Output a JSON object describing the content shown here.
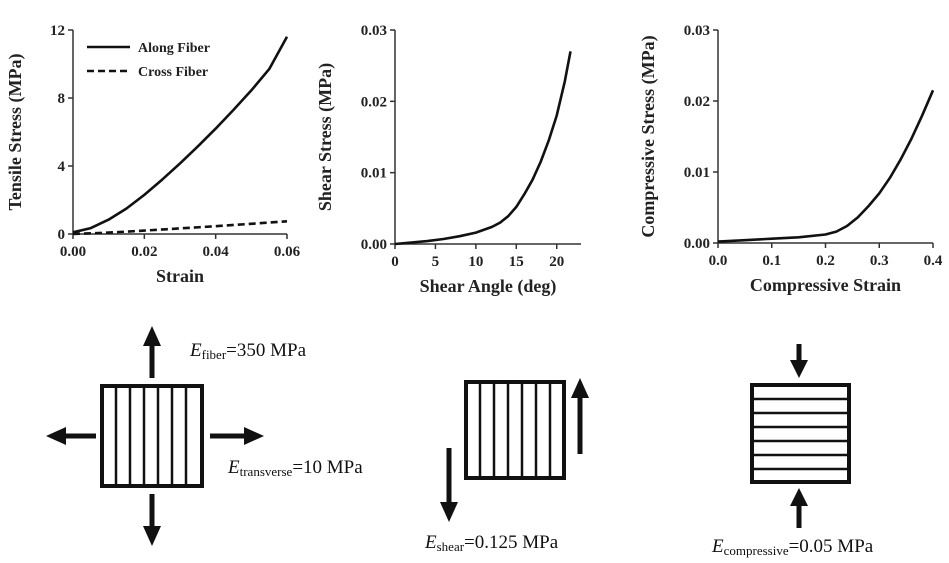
{
  "chart_data": [
    {
      "type": "line",
      "xlabel": "Strain",
      "ylabel": "Tensile Stress (MPa)",
      "xlim": [
        0,
        0.06
      ],
      "ylim": [
        0,
        12
      ],
      "xticks": [
        "0.00",
        "0.02",
        "0.04",
        "0.06"
      ],
      "yticks": [
        "0",
        "4",
        "8",
        "12"
      ],
      "legend_position": "top-left",
      "series": [
        {
          "name": "Along Fiber",
          "style": "solid",
          "x": [
            0,
            0.005,
            0.01,
            0.015,
            0.02,
            0.025,
            0.03,
            0.035,
            0.04,
            0.045,
            0.05,
            0.055,
            0.06
          ],
          "y": [
            0.1,
            0.35,
            0.85,
            1.5,
            2.3,
            3.2,
            4.15,
            5.15,
            6.2,
            7.3,
            8.45,
            9.7,
            11.6
          ]
        },
        {
          "name": "Cross Fiber",
          "style": "dashed",
          "x": [
            0,
            0.01,
            0.02,
            0.03,
            0.04,
            0.05,
            0.06
          ],
          "y": [
            0.0,
            0.08,
            0.2,
            0.33,
            0.46,
            0.6,
            0.75
          ]
        }
      ]
    },
    {
      "type": "line",
      "xlabel": "Shear Angle (deg)",
      "ylabel": "Shear Stress (MPa)",
      "xlim": [
        0,
        23
      ],
      "ylim": [
        0,
        0.03
      ],
      "xticks": [
        "0",
        "5",
        "10",
        "15",
        "20"
      ],
      "yticks": [
        "0.00",
        "0.01",
        "0.02",
        "0.03"
      ],
      "series": [
        {
          "x": [
            0,
            2,
            4,
            6,
            8,
            10,
            12,
            13,
            14,
            15,
            16,
            17,
            18,
            19,
            20,
            21,
            21.7
          ],
          "y": [
            0,
            0.0002,
            0.0004,
            0.0007,
            0.0011,
            0.0016,
            0.0024,
            0.003,
            0.0039,
            0.0052,
            0.007,
            0.009,
            0.0115,
            0.0145,
            0.018,
            0.0228,
            0.027
          ]
        }
      ]
    },
    {
      "type": "line",
      "xlabel": "Compressive Strain",
      "ylabel": "Compressive Stress (MPa)",
      "xlim": [
        0,
        0.4
      ],
      "ylim": [
        0,
        0.03
      ],
      "xticks": [
        "0.0",
        "0.1",
        "0.2",
        "0.3",
        "0.4"
      ],
      "yticks": [
        "0.00",
        "0.01",
        "0.02",
        "0.03"
      ],
      "series": [
        {
          "x": [
            0,
            0.05,
            0.1,
            0.15,
            0.2,
            0.22,
            0.24,
            0.26,
            0.28,
            0.3,
            0.32,
            0.34,
            0.36,
            0.38,
            0.4
          ],
          "y": [
            0.0002,
            0.0004,
            0.0006,
            0.0008,
            0.0012,
            0.0016,
            0.0024,
            0.0036,
            0.0052,
            0.007,
            0.0092,
            0.0118,
            0.0147,
            0.018,
            0.0215
          ]
        }
      ]
    }
  ],
  "labels": {
    "e_fiber": {
      "symbol": "E",
      "sub": "fiber",
      "value": "=350 MPa"
    },
    "e_transverse": {
      "symbol": "E",
      "sub": "transverse",
      "value": "=10 MPa"
    },
    "e_shear": {
      "symbol": "E",
      "sub": "shear",
      "value": "=0.125 MPa"
    },
    "e_compressive": {
      "symbol": "E",
      "sub": "compressive",
      "value": "=0.05 MPa"
    }
  }
}
